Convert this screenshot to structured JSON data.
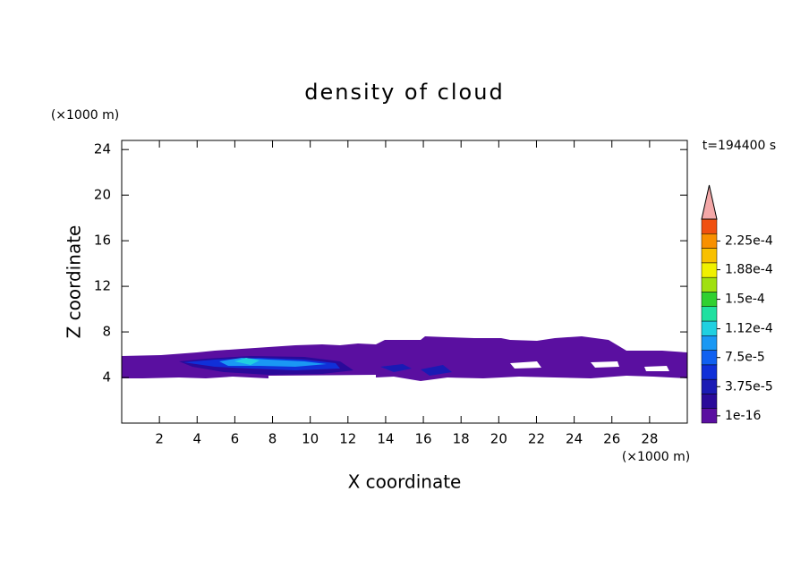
{
  "chart_data": {
    "type": "contour",
    "title": "density of cloud",
    "xlabel": "X coordinate",
    "ylabel": "Z coordinate",
    "x_unit": "(×1000 m)",
    "y_unit": "(×1000 m)",
    "time_label": "t=194400 s",
    "xlim": [
      0,
      30
    ],
    "ylim": [
      0,
      24.8
    ],
    "xticks": [
      2,
      4,
      6,
      8,
      10,
      12,
      14,
      16,
      18,
      20,
      22,
      24,
      26,
      28
    ],
    "yticks": [
      4,
      8,
      12,
      16,
      20,
      24
    ],
    "colorbar": {
      "colors": [
        "#5a0fa0",
        "#2a0a9a",
        "#1a1ab4",
        "#1030d8",
        "#1060f0",
        "#1a98f4",
        "#20d0e0",
        "#20e0a0",
        "#30d030",
        "#a0e010",
        "#f0f000",
        "#f8c000",
        "#f89000",
        "#f05010"
      ],
      "overflow_color": "#f4a8a8",
      "ticks": [
        {
          "value": 1e-16,
          "label": "1e-16"
        },
        {
          "value": 3.75e-05,
          "label": "3.75e-5"
        },
        {
          "value": 7.5e-05,
          "label": "7.5e-5"
        },
        {
          "value": 0.000112,
          "label": "1.12e-4"
        },
        {
          "value": 0.00015,
          "label": "1.5e-4"
        },
        {
          "value": 0.000188,
          "label": "1.88e-4"
        },
        {
          "value": 0.000225,
          "label": "2.25e-4"
        }
      ]
    }
  }
}
